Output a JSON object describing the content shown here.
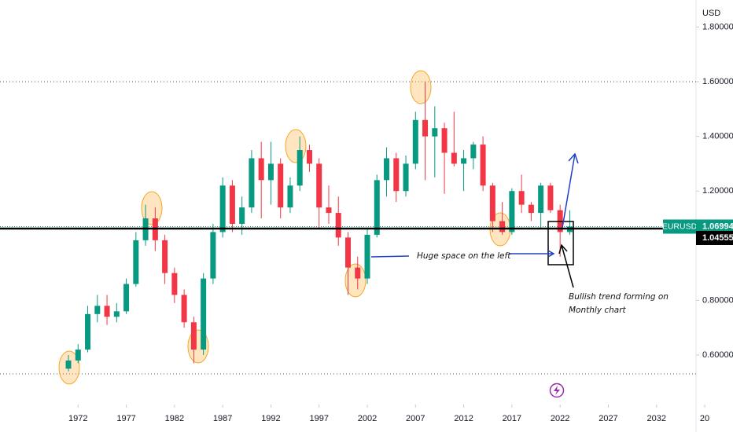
{
  "chart_data": {
    "type": "candlestick",
    "symbol": "EURUSD",
    "currency": "USD",
    "x": [
      1971,
      1972,
      1973,
      1974,
      1975,
      1976,
      1977,
      1978,
      1979,
      1980,
      1981,
      1982,
      1983,
      1984,
      1985,
      1986,
      1987,
      1988,
      1989,
      1990,
      1991,
      1992,
      1993,
      1994,
      1995,
      1996,
      1997,
      1998,
      1999,
      2000,
      2001,
      2002,
      2003,
      2004,
      2005,
      2006,
      2007,
      2008,
      2009,
      2010,
      2011,
      2012,
      2013,
      2014,
      2015,
      2016,
      2017,
      2018,
      2019,
      2020,
      2021,
      2022,
      2023
    ],
    "open": [
      0.55,
      0.58,
      0.62,
      0.75,
      0.78,
      0.74,
      0.76,
      0.86,
      1.02,
      1.1,
      1.02,
      0.9,
      0.82,
      0.72,
      0.62,
      0.88,
      1.05,
      1.22,
      1.08,
      1.14,
      1.32,
      1.24,
      1.3,
      1.14,
      1.22,
      1.35,
      1.3,
      1.14,
      1.12,
      1.03,
      0.92,
      0.88,
      1.04,
      1.24,
      1.32,
      1.2,
      1.3,
      1.46,
      1.4,
      1.43,
      1.34,
      1.3,
      1.32,
      1.37,
      1.22,
      1.09,
      1.05,
      1.2,
      1.15,
      1.12,
      1.22,
      1.13,
      1.05
    ],
    "high": [
      0.6,
      0.64,
      0.78,
      0.82,
      0.82,
      0.79,
      0.88,
      1.05,
      1.15,
      1.14,
      1.04,
      0.92,
      0.84,
      0.74,
      0.9,
      1.08,
      1.25,
      1.24,
      1.18,
      1.35,
      1.38,
      1.38,
      1.32,
      1.25,
      1.4,
      1.37,
      1.32,
      1.22,
      1.18,
      1.05,
      0.96,
      1.06,
      1.26,
      1.36,
      1.34,
      1.33,
      1.49,
      1.6,
      1.51,
      1.45,
      1.49,
      1.35,
      1.38,
      1.4,
      1.23,
      1.16,
      1.21,
      1.26,
      1.16,
      1.23,
      1.23,
      1.15,
      1.13
    ],
    "low": [
      0.54,
      0.57,
      0.61,
      0.72,
      0.71,
      0.72,
      0.75,
      0.85,
      1.0,
      0.98,
      0.86,
      0.79,
      0.7,
      0.57,
      0.6,
      0.86,
      1.03,
      1.05,
      1.04,
      1.12,
      1.1,
      1.15,
      1.1,
      1.12,
      1.2,
      1.27,
      1.06,
      1.08,
      1.0,
      0.82,
      0.84,
      0.86,
      1.03,
      1.18,
      1.16,
      1.18,
      1.28,
      1.24,
      1.25,
      1.19,
      1.29,
      1.2,
      1.28,
      1.2,
      1.05,
      1.04,
      1.04,
      1.12,
      1.09,
      1.06,
      1.12,
      0.96,
      1.04
    ],
    "close": [
      0.58,
      0.62,
      0.75,
      0.78,
      0.74,
      0.76,
      0.86,
      1.02,
      1.1,
      1.02,
      0.9,
      0.82,
      0.72,
      0.62,
      0.88,
      1.05,
      1.22,
      1.08,
      1.14,
      1.32,
      1.24,
      1.3,
      1.14,
      1.22,
      1.35,
      1.3,
      1.14,
      1.12,
      1.03,
      0.92,
      0.88,
      1.04,
      1.24,
      1.32,
      1.2,
      1.3,
      1.46,
      1.4,
      1.43,
      1.34,
      1.3,
      1.32,
      1.37,
      1.22,
      1.09,
      1.05,
      1.2,
      1.15,
      1.12,
      1.22,
      1.13,
      1.05,
      1.06994
    ],
    "up_color": "#089981",
    "down_color": "#f23645",
    "xlim": [
      1963.9,
      2036.1
    ],
    "ylim": [
      0.419,
      1.899
    ],
    "yticks": [
      {
        "value": 0.6,
        "label": "0.60000"
      },
      {
        "value": 0.8,
        "label": "0.80000"
      },
      {
        "value": 1.2,
        "label": "1.20000"
      },
      {
        "value": 1.4,
        "label": "1.40000"
      },
      {
        "value": 1.6,
        "label": "1.60000"
      },
      {
        "value": 1.8,
        "label": "1.80000"
      }
    ],
    "xticks": [
      1972,
      1977,
      1982,
      1987,
      1992,
      1997,
      2002,
      2007,
      2012,
      2017,
      2022,
      2027,
      2032,
      {
        "value": 2037,
        "label": "20"
      }
    ],
    "last_price": 1.06994,
    "support_level": 1.04555,
    "dotted_levels": [
      1.6,
      0.531
    ],
    "annotations": [
      {
        "text": "Huge space on the left"
      },
      {
        "text": [
          "Bullish trend forming on",
          "Monthly chart"
        ]
      }
    ]
  }
}
